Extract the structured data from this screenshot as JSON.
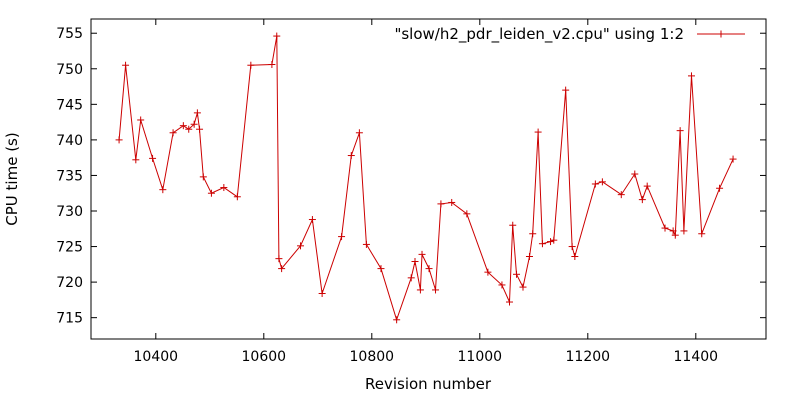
{
  "chart_data": {
    "type": "line",
    "xlabel": "Revision number",
    "ylabel": "CPU time (s)",
    "xlim": [
      10280,
      11530
    ],
    "ylim": [
      712,
      757
    ],
    "xticks": [
      10400,
      10600,
      10800,
      11000,
      11200,
      11400
    ],
    "yticks": [
      715,
      720,
      725,
      730,
      735,
      740,
      745,
      750,
      755
    ],
    "legend_position": "top-right",
    "grid": false,
    "series": [
      {
        "name": "\"slow/h2_pdr_leiden_v2.cpu\" using 1:2",
        "color": "#cc0000",
        "marker": "plus",
        "x": [
          10332,
          10344,
          10363,
          10372,
          10394,
          10413,
          10432,
          10451,
          10461,
          10471,
          10477,
          10481,
          10488,
          10503,
          10526,
          10551,
          10576,
          10615,
          10624,
          10628,
          10633,
          10668,
          10690,
          10708,
          10744,
          10762,
          10777,
          10790,
          10817,
          10846,
          10873,
          10880,
          10890,
          10893,
          10906,
          10918,
          10928,
          10948,
          10976,
          11015,
          11041,
          11055,
          11061,
          11068,
          11080,
          11092,
          11098,
          11108,
          11116,
          11131,
          11137,
          11159,
          11171,
          11176,
          11214,
          11227,
          11262,
          11287,
          11301,
          11310,
          11343,
          11358,
          11362,
          11371,
          11378,
          11392,
          11411,
          11444,
          11469
        ],
        "y": [
          740,
          750.5,
          737.2,
          742.8,
          737.4,
          733,
          741,
          742,
          741.5,
          742.2,
          743.8,
          741.5,
          734.8,
          732.5,
          733.3,
          732,
          750.5,
          750.6,
          754.6,
          723.3,
          721.9,
          725.1,
          728.8,
          718.4,
          726.4,
          737.8,
          741,
          725.3,
          721.9,
          714.7,
          720.6,
          722.9,
          718.9,
          723.9,
          721.9,
          718.9,
          731,
          731.2,
          729.6,
          721.4,
          719.6,
          717.2,
          728,
          721.1,
          719.3,
          723.6,
          726.8,
          741.1,
          725.4,
          725.7,
          725.9,
          747,
          725,
          723.6,
          733.8,
          734.1,
          732.3,
          735.2,
          731.6,
          733.5,
          727.6,
          727.2,
          726.6,
          741.3,
          727.2,
          749,
          726.8,
          733.2,
          737.3
        ]
      }
    ]
  }
}
